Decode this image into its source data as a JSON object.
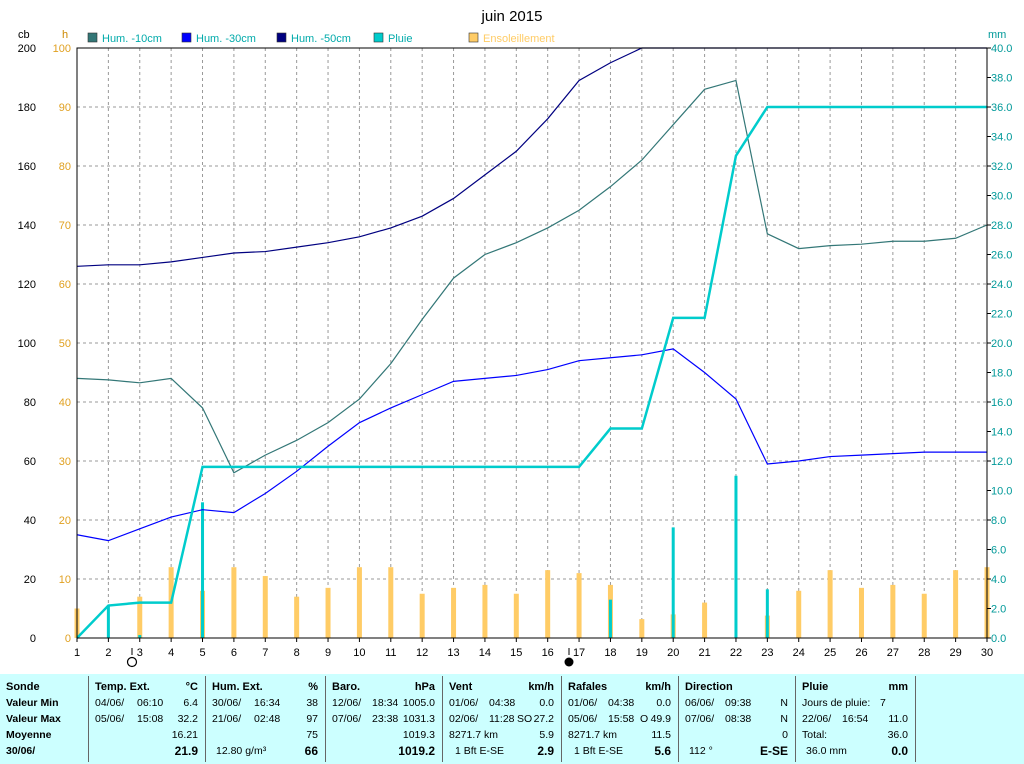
{
  "title": "juin 2015",
  "left_units": {
    "cb": "cb",
    "h": "h"
  },
  "right_unit": "mm",
  "legend": [
    {
      "label": "Hum. -10cm",
      "color": "#337777"
    },
    {
      "label": "Hum. -30cm",
      "color": "#0000ff"
    },
    {
      "label": "Hum. -50cm",
      "color": "#000080"
    },
    {
      "label": "Pluie",
      "color": "#00cccc"
    },
    {
      "label": "Ensoleillement",
      "color": "#ffcc66"
    }
  ],
  "chart_data": {
    "type": "line",
    "title": "juin 2015",
    "x": [
      1,
      2,
      3,
      4,
      5,
      6,
      7,
      8,
      9,
      10,
      11,
      12,
      13,
      14,
      15,
      16,
      17,
      18,
      19,
      20,
      21,
      22,
      23,
      24,
      25,
      26,
      27,
      28,
      29,
      30
    ],
    "x_ticks": [
      "1",
      "2",
      "3",
      "4",
      "5",
      "6",
      "7",
      "8",
      "9",
      "10",
      "11",
      "12",
      "13",
      "14",
      "15",
      "16",
      "17",
      "18",
      "19",
      "20",
      "21",
      "22",
      "23",
      "24",
      "25",
      "26",
      "27",
      "28",
      "29",
      "30"
    ],
    "y_left_cb": {
      "label": "cb",
      "range": [
        0,
        200
      ],
      "ticks": [
        "0",
        "20",
        "40",
        "60",
        "80",
        "100",
        "120",
        "140",
        "160",
        "180",
        "200"
      ]
    },
    "y_left_h": {
      "label": "h",
      "range": [
        0,
        100
      ],
      "ticks": [
        "0",
        "10",
        "20",
        "30",
        "40",
        "50",
        "60",
        "70",
        "80",
        "90",
        "100"
      ]
    },
    "y_right_mm": {
      "label": "mm",
      "range": [
        0,
        40
      ],
      "ticks": [
        "0.0",
        "2.0",
        "4.0",
        "6.0",
        "8.0",
        "10.0",
        "12.0",
        "14.0",
        "16.0",
        "18.0",
        "20.0",
        "22.0",
        "24.0",
        "26.0",
        "28.0",
        "30.0",
        "32.0",
        "34.0",
        "36.0",
        "38.0",
        "40.0"
      ]
    },
    "grid": true,
    "series": [
      {
        "name": "Hum. -10cm",
        "axis": "cb",
        "color": "#337777",
        "x": [
          1,
          2,
          3,
          4,
          5,
          6,
          7,
          8,
          9,
          10,
          11,
          12,
          13,
          14,
          15,
          16,
          17,
          18,
          19,
          20,
          21,
          22,
          23,
          24,
          25,
          26,
          27,
          28,
          29,
          30
        ],
        "values": [
          88,
          87.5,
          86.5,
          88,
          78,
          56,
          62,
          67,
          73,
          81,
          93,
          108,
          122,
          130,
          134,
          139,
          145,
          153,
          162,
          174,
          186,
          189,
          137,
          132,
          133,
          133.5,
          134.5,
          134.5,
          135.5,
          140
        ]
      },
      {
        "name": "Hum. -30cm",
        "axis": "cb",
        "color": "#0000ff",
        "x": [
          1,
          2,
          3,
          4,
          5,
          6,
          7,
          8,
          9,
          10,
          11,
          12,
          13,
          14,
          15,
          16,
          17,
          18,
          19,
          20,
          21,
          22,
          23,
          24,
          25,
          26,
          27,
          28,
          29,
          30
        ],
        "values": [
          35,
          33,
          37,
          41,
          43.5,
          42.5,
          49,
          56.5,
          65,
          73,
          78,
          82.5,
          87,
          88,
          89,
          91,
          94,
          95,
          96,
          98,
          90,
          81,
          59,
          60,
          61.5,
          62,
          62.5,
          63,
          63,
          63
        ]
      },
      {
        "name": "Hum. -50cm",
        "axis": "cb",
        "color": "#000080",
        "x": [
          1,
          2,
          3,
          4,
          5,
          6,
          7,
          8,
          9,
          10,
          11,
          12,
          13,
          14,
          15,
          16,
          17,
          18,
          19,
          20,
          21,
          22,
          23,
          24,
          25,
          26,
          27,
          28,
          29,
          30
        ],
        "values": [
          126,
          126.5,
          126.5,
          127.5,
          129,
          130.5,
          131,
          132.5,
          134,
          136,
          139,
          143,
          149,
          157,
          165,
          176,
          189,
          195,
          200,
          200,
          200,
          200,
          200,
          200,
          200,
          200,
          200,
          200,
          200,
          200
        ]
      },
      {
        "name": "Pluie",
        "axis": "mm",
        "type": "step-cumulative",
        "color": "#00cccc",
        "x": [
          1,
          2,
          3,
          4,
          5,
          6,
          17,
          18,
          19,
          20,
          21,
          22,
          23,
          30
        ],
        "values": [
          0,
          2.2,
          2.4,
          2.4,
          11.6,
          11.6,
          11.6,
          14.2,
          14.2,
          21.7,
          21.7,
          32.7,
          36,
          36
        ]
      },
      {
        "name": "Pluie",
        "axis": "mm",
        "type": "daily-bar",
        "color": "#00cccc",
        "x": [
          2,
          3,
          5,
          18,
          20,
          22,
          23
        ],
        "values": [
          2.2,
          0.2,
          9.2,
          2.6,
          7.5,
          11.0,
          3.3
        ]
      },
      {
        "name": "Ensoleillement",
        "axis": "h",
        "type": "bar",
        "color": "#ffcc66",
        "x": [
          1,
          3,
          4,
          5,
          6,
          7,
          8,
          9,
          10,
          11,
          12,
          13,
          14,
          15,
          16,
          17,
          18,
          19,
          20,
          21,
          22,
          23,
          24,
          25,
          26,
          27,
          28,
          29,
          30
        ],
        "values": [
          5,
          7,
          12,
          8,
          12,
          10.5,
          7,
          8.5,
          12,
          12,
          7.5,
          8.5,
          9,
          7.5,
          11.5,
          11,
          9,
          3.2,
          4,
          6,
          0,
          3.8,
          8,
          11.5,
          8.5,
          9,
          7.5,
          11.5,
          12
        ]
      }
    ]
  },
  "panel": {
    "sonde": {
      "title": "Sonde",
      "rows": [
        "Valeur Min",
        "Valeur Max",
        "Moyenne",
        "30/06/"
      ]
    },
    "temp": {
      "title": "Temp. Ext.",
      "unit": "°C",
      "min_date": "04/06/",
      "min_time": "06:10",
      "min_val": "6.4",
      "max_date": "05/06/",
      "max_time": "15:08",
      "max_val": "32.2",
      "avg": "16.21",
      "current": "21.9"
    },
    "hum": {
      "title": "Hum. Ext.",
      "unit": "%",
      "min_date": "30/06/",
      "min_time": "16:34",
      "min_val": "38",
      "max_date": "21/06/",
      "max_time": "02:48",
      "max_val": "97",
      "avg": "75",
      "extra": "12.80 g/m³",
      "current": "66"
    },
    "baro": {
      "title": "Baro.",
      "unit": "hPa",
      "min_date": "12/06/",
      "min_time": "18:34",
      "min_val": "1005.0",
      "max_date": "07/06/",
      "max_time": "23:38",
      "max_val": "1031.3",
      "avg": "1019.3",
      "current": "1019.2"
    },
    "vent": {
      "title": "Vent",
      "unit": "km/h",
      "min_date": "01/06/",
      "min_time": "04:38",
      "min_val": "0.0",
      "max_date": "02/06/",
      "max_time": "11:28",
      "max_dir": "SO",
      "max_val": "27.2",
      "distance": "8271.7 km",
      "avg": "5.9",
      "beaufort": "1 Bft E-SE",
      "current": "2.9"
    },
    "rafales": {
      "title": "Rafales",
      "unit": "km/h",
      "min_date": "01/06/",
      "min_time": "04:38",
      "min_val": "0.0",
      "max_date": "05/06/",
      "max_time": "15:58",
      "max_dir": "O",
      "max_val": "49.9",
      "distance": "8271.7 km",
      "avg": "11.5",
      "beaufort": "1 Bft E-SE",
      "current": "5.6"
    },
    "direction": {
      "title": "Direction",
      "r1_date": "06/06/",
      "r1_time": "09:38",
      "r1_dir": "N",
      "r2_date": "07/06/",
      "r2_time": "08:38",
      "r2_dir": "N",
      "r3_val": "0",
      "degrees": "112 °",
      "current": "E-SE"
    },
    "pluie": {
      "title": "Pluie",
      "unit": "mm",
      "days_label": "Jours de pluie:",
      "days": "7",
      "max_date": "22/06/",
      "max_time": "16:54",
      "max_val": "11.0",
      "total_label": "Total:",
      "total": "36.0",
      "summary": "36.0 mm",
      "current": "0.0"
    }
  }
}
